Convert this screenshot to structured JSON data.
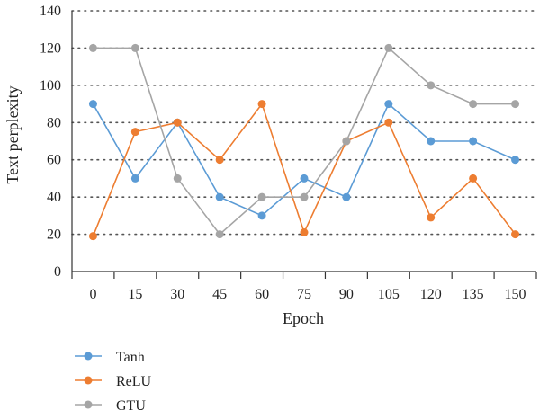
{
  "chart_data": {
    "type": "line",
    "title": "",
    "xlabel": "Epoch",
    "ylabel": "Text perplexity",
    "x": [
      0,
      15,
      30,
      45,
      60,
      75,
      90,
      105,
      120,
      135,
      150
    ],
    "ylim": [
      0,
      140
    ],
    "yticks": [
      0,
      20,
      40,
      60,
      80,
      100,
      120,
      140
    ],
    "grid": "horizontal-dotted",
    "legend_position": "bottom-left",
    "series": [
      {
        "name": "Tanh",
        "color": "#5b9bd5",
        "values": [
          90,
          50,
          80,
          40,
          30,
          50,
          40,
          90,
          70,
          70,
          60
        ]
      },
      {
        "name": "ReLU",
        "color": "#ed7d31",
        "values": [
          19,
          75,
          80,
          60,
          90,
          21,
          70,
          80,
          29,
          50,
          20
        ]
      },
      {
        "name": "GTU",
        "color": "#a5a5a5",
        "values": [
          120,
          120,
          50,
          20,
          40,
          40,
          70,
          120,
          100,
          90,
          90
        ]
      }
    ]
  }
}
